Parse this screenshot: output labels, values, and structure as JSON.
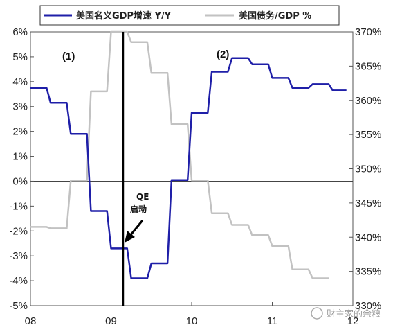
{
  "chart_data": {
    "type": "line",
    "x_ticks": [
      "08",
      "09",
      "10",
      "11",
      "12"
    ],
    "y_left": {
      "min": -5,
      "max": 6,
      "ticks": [
        "6%",
        "5%",
        "4%",
        "3%",
        "2%",
        "1%",
        "0%",
        "-1%",
        "-2%",
        "-3%",
        "-4%",
        "-5%"
      ]
    },
    "y_right": {
      "min": 330,
      "max": 370,
      "ticks": [
        "370%",
        "365%",
        "360%",
        "355%",
        "350%",
        "345%",
        "340%",
        "335%",
        "330%"
      ]
    },
    "series": [
      {
        "name": "美国名义GDP增速 Y/Y",
        "axis": "left",
        "color": "#1f1fa8",
        "points": [
          [
            2008.0,
            3.75
          ],
          [
            2008.2,
            3.75
          ],
          [
            2008.25,
            3.15
          ],
          [
            2008.45,
            3.15
          ],
          [
            2008.5,
            1.9
          ],
          [
            2008.7,
            1.9
          ],
          [
            2008.75,
            -1.2
          ],
          [
            2008.95,
            -1.2
          ],
          [
            2009.0,
            -2.7
          ],
          [
            2009.2,
            -2.7
          ],
          [
            2009.25,
            -3.9
          ],
          [
            2009.45,
            -3.9
          ],
          [
            2009.5,
            -3.3
          ],
          [
            2009.7,
            -3.3
          ],
          [
            2009.75,
            0.05
          ],
          [
            2009.95,
            0.05
          ],
          [
            2010.0,
            2.75
          ],
          [
            2010.2,
            2.75
          ],
          [
            2010.25,
            4.4
          ],
          [
            2010.45,
            4.4
          ],
          [
            2010.5,
            4.95
          ],
          [
            2010.7,
            4.95
          ],
          [
            2010.75,
            4.7
          ],
          [
            2010.95,
            4.7
          ],
          [
            2011.0,
            4.15
          ],
          [
            2011.2,
            4.15
          ],
          [
            2011.25,
            3.75
          ],
          [
            2011.45,
            3.75
          ],
          [
            2011.5,
            3.9
          ],
          [
            2011.7,
            3.9
          ],
          [
            2011.75,
            3.65
          ],
          [
            2011.92,
            3.65
          ]
        ]
      },
      {
        "name": "美国债务/GDP %",
        "axis": "right",
        "color": "#c2c2c2",
        "points": [
          [
            2008.0,
            341.5
          ],
          [
            2008.2,
            341.5
          ],
          [
            2008.25,
            341.3
          ],
          [
            2008.45,
            341.3
          ],
          [
            2008.5,
            348.3
          ],
          [
            2008.7,
            348.3
          ],
          [
            2008.75,
            361.3
          ],
          [
            2008.95,
            361.3
          ],
          [
            2009.0,
            370.0
          ],
          [
            2009.2,
            370.0
          ],
          [
            2009.25,
            368.5
          ],
          [
            2009.45,
            368.5
          ],
          [
            2009.5,
            364.0
          ],
          [
            2009.7,
            364.0
          ],
          [
            2009.75,
            356.5
          ],
          [
            2009.95,
            356.5
          ],
          [
            2010.0,
            348.3
          ],
          [
            2010.2,
            348.3
          ],
          [
            2010.25,
            343.5
          ],
          [
            2010.45,
            343.5
          ],
          [
            2010.5,
            341.8
          ],
          [
            2010.7,
            341.8
          ],
          [
            2010.75,
            340.3
          ],
          [
            2010.95,
            340.3
          ],
          [
            2011.0,
            338.7
          ],
          [
            2011.2,
            338.7
          ],
          [
            2011.25,
            335.3
          ],
          [
            2011.45,
            335.3
          ],
          [
            2011.5,
            334.0
          ],
          [
            2011.7,
            334.0
          ]
        ]
      }
    ],
    "vline_x": 2009.15,
    "annotations": {
      "p1": "(1)",
      "p2": "(2)",
      "qe_line1": "QE",
      "qe_line2": "启动"
    },
    "grid": false,
    "legend_position": "top"
  },
  "watermark": "财主家的余粮"
}
